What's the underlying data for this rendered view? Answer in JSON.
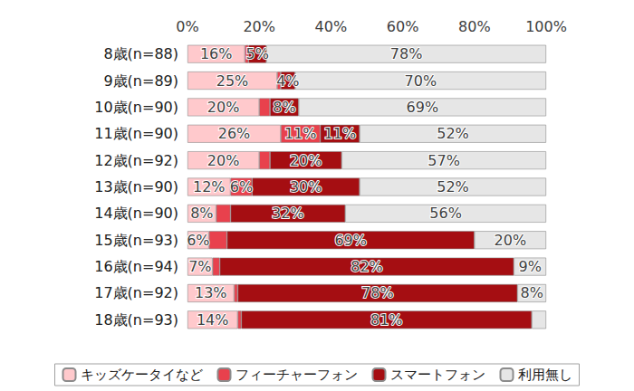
{
  "chart_data": {
    "type": "bar",
    "orientation": "horizontal",
    "stacked": true,
    "data_labels": true,
    "grid": false,
    "legend": "bottom",
    "categories": [
      "8歳(n=88)",
      "9歳(n=89)",
      "10歳(n=90)",
      "11歳(n=90)",
      "12歳(n=92)",
      "13歳(n=90)",
      "14歳(n=90)",
      "15歳(n=93)",
      "16歳(n=94)",
      "17歳(n=92)",
      "18歳(n=93)"
    ],
    "series": [
      {
        "name": "キッズケータイなど",
        "color": "#ffc9cc",
        "values": [
          16,
          25,
          20,
          26,
          20,
          12,
          8,
          6,
          7,
          13,
          14
        ],
        "value_labels": [
          "16%",
          "25%",
          "20%",
          "26%",
          "20%",
          "12%",
          "8%",
          "6%",
          "7%",
          "13%",
          "14%"
        ]
      },
      {
        "name": "フィーチャーフォン",
        "color": "#e8414d",
        "values": [
          1,
          1,
          3,
          11,
          3,
          6,
          4,
          5,
          2,
          1,
          1
        ],
        "value_labels": [
          null,
          null,
          null,
          "11%",
          null,
          "6%",
          null,
          null,
          null,
          null,
          null
        ]
      },
      {
        "name": "スマートフォン",
        "color": "#a50e12",
        "values": [
          5,
          4,
          8,
          11,
          20,
          30,
          32,
          69,
          82,
          78,
          81
        ],
        "value_labels": [
          "5%",
          "4%",
          "8%",
          "11%",
          "20%",
          "30%",
          "32%",
          "69%",
          "82%",
          "78%",
          "81%"
        ]
      },
      {
        "name": "利用無し",
        "color": "#e6e6e6",
        "values": [
          78,
          70,
          69,
          52,
          57,
          52,
          56,
          20,
          9,
          8,
          4
        ],
        "value_labels": [
          "78%",
          "70%",
          "69%",
          "52%",
          "57%",
          "52%",
          "56%",
          "20%",
          "9%",
          "8%",
          null
        ]
      }
    ],
    "xlim": [
      0,
      100
    ],
    "xticks": [
      {
        "value": 0,
        "label": "0%"
      },
      {
        "value": 20,
        "label": "20%"
      },
      {
        "value": 40,
        "label": "40%"
      },
      {
        "value": 60,
        "label": "60%"
      },
      {
        "value": 80,
        "label": "80%"
      },
      {
        "value": 100,
        "label": "100%"
      }
    ]
  }
}
